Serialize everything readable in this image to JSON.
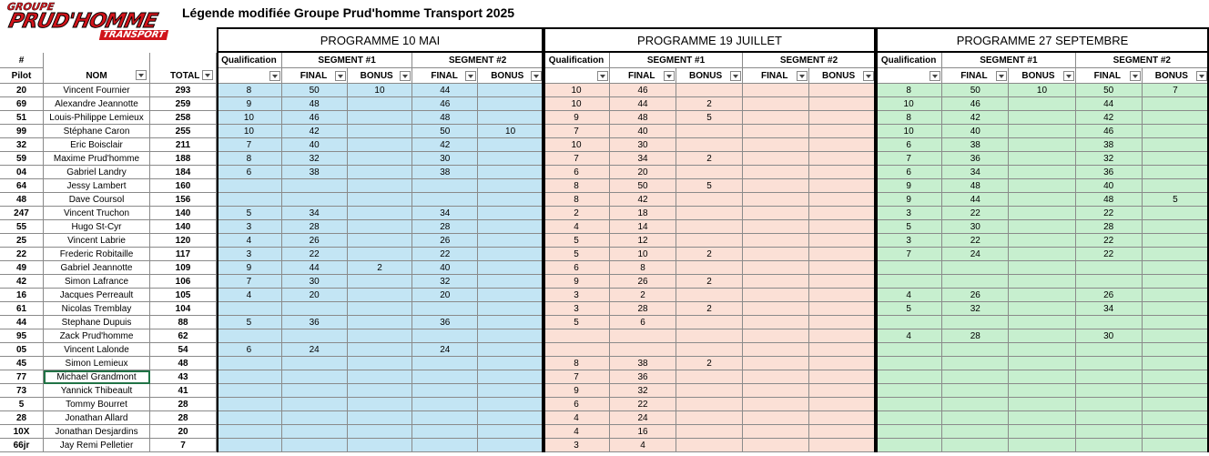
{
  "header": {
    "logo": [
      "GROUPE",
      "PRUD'HOMME",
      "TRANSPORT"
    ],
    "title": "Légende modifiée Groupe Prud'homme Transport 2025"
  },
  "table": {
    "programmes": [
      "PROGRAMME 10 MAI",
      "PROGRAMME 19 JUILLET",
      "PROGRAMME 27 SEPTEMBRE"
    ],
    "left_headers": {
      "number": "#",
      "pilot": "Pilot",
      "name": "NOM",
      "total": "TOTAL"
    },
    "sub_headers": {
      "qualification": "Qualification",
      "segment1": "SEGMENT #1",
      "segment2": "SEGMENT #2",
      "final": "FINAL",
      "bonus": "BONUS"
    },
    "rows": [
      {
        "pilot": "20",
        "name": "Vincent Fournier",
        "total": 293,
        "scores": [
          8,
          50,
          10,
          44,
          null,
          10,
          46,
          null,
          null,
          null,
          8,
          50,
          10,
          50,
          7
        ]
      },
      {
        "pilot": "69",
        "name": "Alexandre Jeannotte",
        "total": 259,
        "scores": [
          9,
          48,
          null,
          46,
          null,
          10,
          44,
          2,
          null,
          null,
          10,
          46,
          null,
          44,
          null
        ]
      },
      {
        "pilot": "51",
        "name": "Louis-Philippe Lemieux",
        "total": 258,
        "scores": [
          10,
          46,
          null,
          48,
          null,
          9,
          48,
          5,
          null,
          null,
          8,
          42,
          null,
          42,
          null
        ]
      },
      {
        "pilot": "99",
        "name": "Stéphane Caron",
        "total": 255,
        "scores": [
          10,
          42,
          null,
          50,
          10,
          7,
          40,
          null,
          null,
          null,
          10,
          40,
          null,
          46,
          null
        ]
      },
      {
        "pilot": "32",
        "name": "Eric Boisclair",
        "total": 211,
        "scores": [
          7,
          40,
          null,
          42,
          null,
          10,
          30,
          null,
          null,
          null,
          6,
          38,
          null,
          38,
          null
        ]
      },
      {
        "pilot": "59",
        "name": "Maxime Prud'homme",
        "total": 188,
        "scores": [
          8,
          32,
          null,
          30,
          null,
          7,
          34,
          2,
          null,
          null,
          7,
          36,
          null,
          32,
          null
        ]
      },
      {
        "pilot": "04",
        "name": "Gabriel Landry",
        "total": 184,
        "scores": [
          6,
          38,
          null,
          38,
          null,
          6,
          20,
          null,
          null,
          null,
          6,
          34,
          null,
          36,
          null
        ]
      },
      {
        "pilot": "64",
        "name": "Jessy Lambert",
        "total": 160,
        "scores": [
          null,
          null,
          null,
          null,
          null,
          8,
          50,
          5,
          null,
          null,
          9,
          48,
          null,
          40,
          null
        ]
      },
      {
        "pilot": "48",
        "name": "Dave Coursol",
        "total": 156,
        "scores": [
          null,
          null,
          null,
          null,
          null,
          8,
          42,
          null,
          null,
          null,
          9,
          44,
          null,
          48,
          5
        ]
      },
      {
        "pilot": "247",
        "name": "Vincent Truchon",
        "total": 140,
        "scores": [
          5,
          34,
          null,
          34,
          null,
          2,
          18,
          null,
          null,
          null,
          3,
          22,
          null,
          22,
          null
        ]
      },
      {
        "pilot": "55",
        "name": "Hugo St-Cyr",
        "total": 140,
        "scores": [
          3,
          28,
          null,
          28,
          null,
          4,
          14,
          null,
          null,
          null,
          5,
          30,
          null,
          28,
          null
        ]
      },
      {
        "pilot": "25",
        "name": "Vincent Labrie",
        "total": 120,
        "scores": [
          4,
          26,
          null,
          26,
          null,
          5,
          12,
          null,
          null,
          null,
          3,
          22,
          null,
          22,
          null
        ]
      },
      {
        "pilot": "22",
        "name": "Frederic Robitaille",
        "total": 117,
        "scores": [
          3,
          22,
          null,
          22,
          null,
          5,
          10,
          2,
          null,
          null,
          7,
          24,
          null,
          22,
          null
        ]
      },
      {
        "pilot": "49",
        "name": "Gabriel Jeannotte",
        "total": 109,
        "scores": [
          9,
          44,
          2,
          40,
          null,
          6,
          8,
          null,
          null,
          null,
          null,
          null,
          null,
          null,
          null
        ]
      },
      {
        "pilot": "42",
        "name": "Simon Lafrance",
        "total": 106,
        "scores": [
          7,
          30,
          null,
          32,
          null,
          9,
          26,
          2,
          null,
          null,
          null,
          null,
          null,
          null,
          null
        ]
      },
      {
        "pilot": "16",
        "name": "Jacques Perreault",
        "total": 105,
        "scores": [
          4,
          20,
          null,
          20,
          null,
          3,
          2,
          null,
          null,
          null,
          4,
          26,
          null,
          26,
          null
        ]
      },
      {
        "pilot": "61",
        "name": "Nicolas Tremblay",
        "total": 104,
        "scores": [
          null,
          null,
          null,
          null,
          null,
          3,
          28,
          2,
          null,
          null,
          5,
          32,
          null,
          34,
          null
        ]
      },
      {
        "pilot": "44",
        "name": "Stephane Dupuis",
        "total": 88,
        "scores": [
          5,
          36,
          null,
          36,
          null,
          5,
          6,
          null,
          null,
          null,
          null,
          null,
          null,
          null,
          null
        ]
      },
      {
        "pilot": "95",
        "name": "Zack Prud'homme",
        "total": 62,
        "scores": [
          null,
          null,
          null,
          null,
          null,
          null,
          null,
          null,
          null,
          null,
          4,
          28,
          null,
          30,
          null
        ]
      },
      {
        "pilot": "05",
        "name": "Vincent Lalonde",
        "total": 54,
        "scores": [
          6,
          24,
          null,
          24,
          null,
          null,
          null,
          null,
          null,
          null,
          null,
          null,
          null,
          null,
          null
        ]
      },
      {
        "pilot": "45",
        "name": "Simon Lemieux",
        "total": 48,
        "scores": [
          null,
          null,
          null,
          null,
          null,
          8,
          38,
          2,
          null,
          null,
          null,
          null,
          null,
          null,
          null
        ]
      },
      {
        "pilot": "77",
        "name": "Michael Grandmont",
        "total": 43,
        "scores": [
          null,
          null,
          null,
          null,
          null,
          7,
          36,
          null,
          null,
          null,
          null,
          null,
          null,
          null,
          null
        ]
      },
      {
        "pilot": "73",
        "name": "Yannick Thibeault",
        "total": 41,
        "scores": [
          null,
          null,
          null,
          null,
          null,
          9,
          32,
          null,
          null,
          null,
          null,
          null,
          null,
          null,
          null
        ]
      },
      {
        "pilot": "5",
        "name": "Tommy Bourret",
        "total": 28,
        "scores": [
          null,
          null,
          null,
          null,
          null,
          6,
          22,
          null,
          null,
          null,
          null,
          null,
          null,
          null,
          null
        ]
      },
      {
        "pilot": "28",
        "name": "Jonathan Allard",
        "total": 28,
        "scores": [
          null,
          null,
          null,
          null,
          null,
          4,
          24,
          null,
          null,
          null,
          null,
          null,
          null,
          null,
          null
        ]
      },
      {
        "pilot": "10X",
        "name": "Jonathan Desjardins",
        "total": 20,
        "scores": [
          null,
          null,
          null,
          null,
          null,
          4,
          16,
          null,
          null,
          null,
          null,
          null,
          null,
          null,
          null
        ]
      },
      {
        "pilot": "66jr",
        "name": "Jay Remi Pelletier",
        "total": 7,
        "scores": [
          null,
          null,
          null,
          null,
          null,
          3,
          4,
          null,
          null,
          null,
          null,
          null,
          null,
          null,
          null
        ]
      }
    ]
  }
}
